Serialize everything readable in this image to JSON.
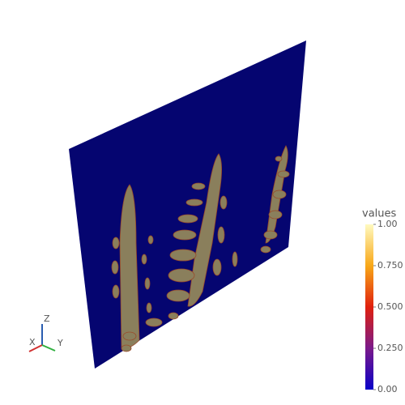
{
  "colorbar": {
    "title": "values",
    "range": [
      0,
      1
    ],
    "ticks": [
      {
        "value": 0,
        "label": "0.00"
      },
      {
        "value": 0.25,
        "label": "0.250"
      },
      {
        "value": 0.5,
        "label": "0.500"
      },
      {
        "value": 0.75,
        "label": "0.750"
      },
      {
        "value": 1,
        "label": "1.00"
      }
    ]
  },
  "axes_triad": {
    "labels": [
      "X",
      "Y",
      "Z"
    ]
  }
}
